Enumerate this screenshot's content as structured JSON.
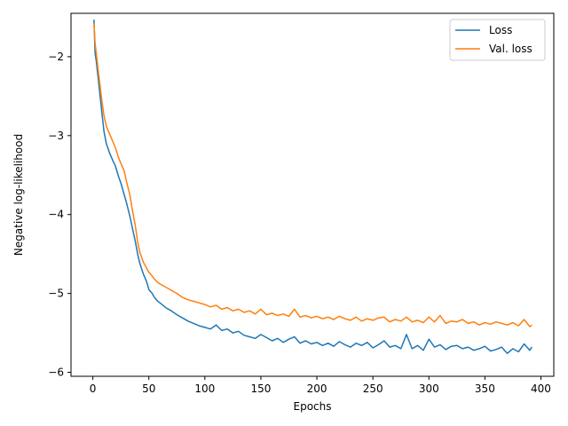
{
  "chart_data": {
    "type": "line",
    "title": "",
    "xlabel": "Epochs",
    "ylabel": "Negative log-likelihood",
    "xlim": [
      -19.5,
      411.5
    ],
    "ylim": [
      -6.05,
      -1.45
    ],
    "xticks": [
      0,
      50,
      100,
      150,
      200,
      250,
      300,
      350,
      400
    ],
    "yticks": [
      -6,
      -5,
      -4,
      -3,
      -2
    ],
    "grid": false,
    "legend_position": "top-right",
    "x": [
      1,
      2,
      3,
      5,
      8,
      10,
      12,
      15,
      18,
      20,
      23,
      25,
      28,
      30,
      33,
      35,
      38,
      40,
      42,
      45,
      48,
      50,
      53,
      55,
      58,
      60,
      65,
      70,
      75,
      80,
      85,
      90,
      95,
      100,
      105,
      110,
      115,
      120,
      125,
      130,
      135,
      140,
      145,
      150,
      155,
      160,
      165,
      170,
      175,
      180,
      185,
      190,
      195,
      200,
      205,
      210,
      215,
      220,
      225,
      230,
      235,
      240,
      245,
      250,
      255,
      260,
      265,
      270,
      275,
      280,
      285,
      290,
      295,
      300,
      305,
      310,
      315,
      320,
      325,
      330,
      335,
      340,
      345,
      350,
      355,
      360,
      365,
      370,
      375,
      380,
      385,
      390,
      392
    ],
    "series": [
      {
        "name": "Loss",
        "color": "#1f77b4",
        "values": [
          -1.53,
          -1.95,
          -2.05,
          -2.3,
          -2.7,
          -2.95,
          -3.1,
          -3.22,
          -3.32,
          -3.38,
          -3.52,
          -3.6,
          -3.75,
          -3.85,
          -4.02,
          -4.15,
          -4.35,
          -4.5,
          -4.62,
          -4.75,
          -4.85,
          -4.95,
          -5.0,
          -5.05,
          -5.1,
          -5.12,
          -5.18,
          -5.22,
          -5.27,
          -5.31,
          -5.35,
          -5.38,
          -5.41,
          -5.43,
          -5.45,
          -5.4,
          -5.47,
          -5.45,
          -5.5,
          -5.48,
          -5.53,
          -5.55,
          -5.57,
          -5.52,
          -5.56,
          -5.6,
          -5.57,
          -5.62,
          -5.58,
          -5.55,
          -5.63,
          -5.6,
          -5.64,
          -5.62,
          -5.66,
          -5.63,
          -5.67,
          -5.61,
          -5.65,
          -5.68,
          -5.63,
          -5.66,
          -5.62,
          -5.69,
          -5.65,
          -5.6,
          -5.68,
          -5.66,
          -5.7,
          -5.52,
          -5.7,
          -5.66,
          -5.72,
          -5.58,
          -5.68,
          -5.65,
          -5.71,
          -5.67,
          -5.66,
          -5.7,
          -5.68,
          -5.72,
          -5.7,
          -5.67,
          -5.73,
          -5.71,
          -5.68,
          -5.76,
          -5.7,
          -5.74,
          -5.64,
          -5.72,
          -5.68
        ]
      },
      {
        "name": "Val. loss",
        "color": "#ff7f0e",
        "values": [
          -1.58,
          -1.82,
          -1.95,
          -2.2,
          -2.55,
          -2.75,
          -2.88,
          -2.98,
          -3.08,
          -3.15,
          -3.28,
          -3.35,
          -3.45,
          -3.58,
          -3.75,
          -3.92,
          -4.15,
          -4.35,
          -4.48,
          -4.6,
          -4.68,
          -4.73,
          -4.78,
          -4.82,
          -4.86,
          -4.88,
          -4.92,
          -4.96,
          -5.0,
          -5.05,
          -5.08,
          -5.1,
          -5.12,
          -5.14,
          -5.17,
          -5.15,
          -5.2,
          -5.18,
          -5.22,
          -5.2,
          -5.24,
          -5.22,
          -5.26,
          -5.2,
          -5.27,
          -5.25,
          -5.28,
          -5.26,
          -5.29,
          -5.2,
          -5.3,
          -5.28,
          -5.31,
          -5.29,
          -5.32,
          -5.3,
          -5.33,
          -5.29,
          -5.32,
          -5.34,
          -5.3,
          -5.35,
          -5.32,
          -5.34,
          -5.31,
          -5.3,
          -5.36,
          -5.33,
          -5.35,
          -5.3,
          -5.36,
          -5.34,
          -5.37,
          -5.3,
          -5.36,
          -5.28,
          -5.38,
          -5.35,
          -5.36,
          -5.33,
          -5.38,
          -5.36,
          -5.4,
          -5.37,
          -5.39,
          -5.36,
          -5.38,
          -5.4,
          -5.37,
          -5.41,
          -5.33,
          -5.42,
          -5.4
        ]
      }
    ]
  }
}
